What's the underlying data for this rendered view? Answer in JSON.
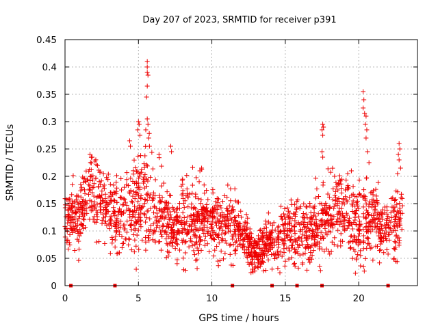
{
  "chart_data": {
    "type": "scatter",
    "title": "Day 207 of 2023, SRMTID for receiver p391",
    "xlabel": "GPS time / hours",
    "ylabel": "SRMTID / TECUs",
    "xlim": [
      0,
      24
    ],
    "ylim": [
      0,
      0.45
    ],
    "grid": true,
    "marker": "+",
    "colors": {
      "series": "#ee0000",
      "grid": "#a0a0a0",
      "axis": "#000000"
    },
    "x_ticks": [
      "0",
      "5",
      "10",
      "15",
      "20"
    ],
    "x_tick_values": [
      0,
      5,
      10,
      15,
      20
    ],
    "y_ticks": [
      "0",
      "0.05",
      "0.1",
      "0.15",
      "0.2",
      "0.25",
      "0.3",
      "0.35",
      "0.4",
      "0.45"
    ],
    "y_tick_values": [
      0,
      0.05,
      0.1,
      0.15,
      0.2,
      0.25,
      0.3,
      0.35,
      0.4,
      0.45
    ],
    "baseline_points_x": [
      0.4,
      3.4,
      11.4,
      14.1,
      15.8,
      17.5,
      22.0
    ],
    "profile_hours": [
      0,
      0.5,
      1,
      1.5,
      2,
      2.5,
      3,
      3.5,
      4,
      4.5,
      5,
      5.5,
      6,
      6.5,
      7,
      7.5,
      8,
      8.5,
      9,
      9.5,
      10,
      10.5,
      11,
      11.5,
      12,
      12.5,
      13,
      13.5,
      14,
      14.5,
      15,
      15.5,
      16,
      16.5,
      17,
      17.5,
      18,
      18.5,
      19,
      19.5,
      20,
      20.5,
      21,
      21.5,
      22,
      22.5,
      23
    ],
    "profile_median": [
      0.12,
      0.13,
      0.12,
      0.16,
      0.17,
      0.15,
      0.14,
      0.12,
      0.12,
      0.14,
      0.15,
      0.17,
      0.15,
      0.14,
      0.12,
      0.1,
      0.12,
      0.13,
      0.12,
      0.12,
      0.12,
      0.11,
      0.12,
      0.1,
      0.1,
      0.08,
      0.06,
      0.07,
      0.08,
      0.08,
      0.1,
      0.11,
      0.1,
      0.1,
      0.1,
      0.12,
      0.13,
      0.14,
      0.14,
      0.13,
      0.1,
      0.12,
      0.13,
      0.1,
      0.11,
      0.11,
      0.12
    ],
    "profile_spread": [
      0.03,
      0.04,
      0.04,
      0.04,
      0.05,
      0.04,
      0.04,
      0.04,
      0.05,
      0.05,
      0.06,
      0.07,
      0.06,
      0.05,
      0.05,
      0.04,
      0.05,
      0.05,
      0.05,
      0.04,
      0.04,
      0.04,
      0.04,
      0.04,
      0.03,
      0.03,
      0.02,
      0.03,
      0.03,
      0.03,
      0.04,
      0.04,
      0.04,
      0.04,
      0.04,
      0.05,
      0.05,
      0.05,
      0.05,
      0.05,
      0.05,
      0.05,
      0.05,
      0.04,
      0.04,
      0.05,
      0.04
    ],
    "data_hours": [
      0,
      23
    ],
    "samples_per_hour": 90,
    "outliers": [
      {
        "x": 5.6,
        "y": 0.41
      },
      {
        "x": 5.6,
        "y": 0.4
      },
      {
        "x": 5.6,
        "y": 0.39
      },
      {
        "x": 5.65,
        "y": 0.385
      },
      {
        "x": 5.6,
        "y": 0.365
      },
      {
        "x": 5.55,
        "y": 0.345
      },
      {
        "x": 5.6,
        "y": 0.305
      },
      {
        "x": 5.65,
        "y": 0.295
      },
      {
        "x": 5.5,
        "y": 0.285
      },
      {
        "x": 5.0,
        "y": 0.3
      },
      {
        "x": 5.05,
        "y": 0.295
      },
      {
        "x": 4.95,
        "y": 0.285
      },
      {
        "x": 5.1,
        "y": 0.275
      },
      {
        "x": 4.4,
        "y": 0.265
      },
      {
        "x": 4.45,
        "y": 0.255
      },
      {
        "x": 5.7,
        "y": 0.27
      },
      {
        "x": 5.75,
        "y": 0.255
      },
      {
        "x": 7.2,
        "y": 0.255
      },
      {
        "x": 7.25,
        "y": 0.245
      },
      {
        "x": 6.4,
        "y": 0.24
      },
      {
        "x": 1.7,
        "y": 0.24
      },
      {
        "x": 1.85,
        "y": 0.235
      },
      {
        "x": 17.55,
        "y": 0.295
      },
      {
        "x": 17.6,
        "y": 0.29
      },
      {
        "x": 17.5,
        "y": 0.285
      },
      {
        "x": 17.55,
        "y": 0.275
      },
      {
        "x": 17.5,
        "y": 0.245
      },
      {
        "x": 17.55,
        "y": 0.235
      },
      {
        "x": 20.3,
        "y": 0.355
      },
      {
        "x": 20.35,
        "y": 0.34
      },
      {
        "x": 20.3,
        "y": 0.325
      },
      {
        "x": 20.4,
        "y": 0.315
      },
      {
        "x": 20.5,
        "y": 0.31
      },
      {
        "x": 20.45,
        "y": 0.295
      },
      {
        "x": 20.55,
        "y": 0.285
      },
      {
        "x": 20.5,
        "y": 0.27
      },
      {
        "x": 20.6,
        "y": 0.245
      },
      {
        "x": 20.7,
        "y": 0.225
      },
      {
        "x": 22.75,
        "y": 0.26
      },
      {
        "x": 22.8,
        "y": 0.25
      },
      {
        "x": 22.7,
        "y": 0.24
      },
      {
        "x": 22.75,
        "y": 0.23
      },
      {
        "x": 22.85,
        "y": 0.215
      },
      {
        "x": 9.3,
        "y": 0.215
      },
      {
        "x": 12.75,
        "y": 0.03
      },
      {
        "x": 12.8,
        "y": 0.025
      },
      {
        "x": 4.85,
        "y": 0.03
      },
      {
        "x": 19.5,
        "y": 0.21
      }
    ]
  }
}
